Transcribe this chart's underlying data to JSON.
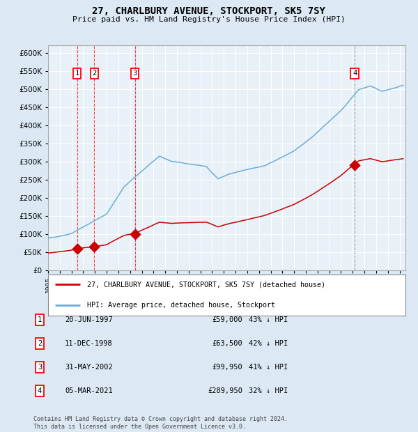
{
  "title": "27, CHARLBURY AVENUE, STOCKPORT, SK5 7SY",
  "subtitle": "Price paid vs. HM Land Registry's House Price Index (HPI)",
  "background_color": "#dce9f5",
  "plot_background": "#e8f0f8",
  "grid_color": "#ffffff",
  "hpi_color": "#6aaed6",
  "price_color": "#cc0000",
  "purchases": [
    {
      "date_num": 1997.47,
      "price": 59000,
      "label": "1",
      "date_str": "20-JUN-1997",
      "pct": "43% ↓ HPI"
    },
    {
      "date_num": 1998.94,
      "price": 63500,
      "label": "2",
      "date_str": "11-DEC-1998",
      "pct": "42% ↓ HPI"
    },
    {
      "date_num": 2002.41,
      "price": 99950,
      "label": "3",
      "date_str": "31-MAY-2002",
      "pct": "41% ↓ HPI"
    },
    {
      "date_num": 2021.17,
      "price": 289950,
      "label": "4",
      "date_str": "05-MAR-2021",
      "pct": "32% ↓ HPI"
    }
  ],
  "xmin": 1995.0,
  "xmax": 2025.5,
  "ymin": 0,
  "ymax": 620000,
  "yticks": [
    0,
    50000,
    100000,
    150000,
    200000,
    250000,
    300000,
    350000,
    400000,
    450000,
    500000,
    550000,
    600000
  ],
  "legend_line1": "27, CHARLBURY AVENUE, STOCKPORT, SK5 7SY (detached house)",
  "legend_line2": "HPI: Average price, detached house, Stockport",
  "footer": "Contains HM Land Registry data © Crown copyright and database right 2024.\nThis data is licensed under the Open Government Licence v3.0."
}
